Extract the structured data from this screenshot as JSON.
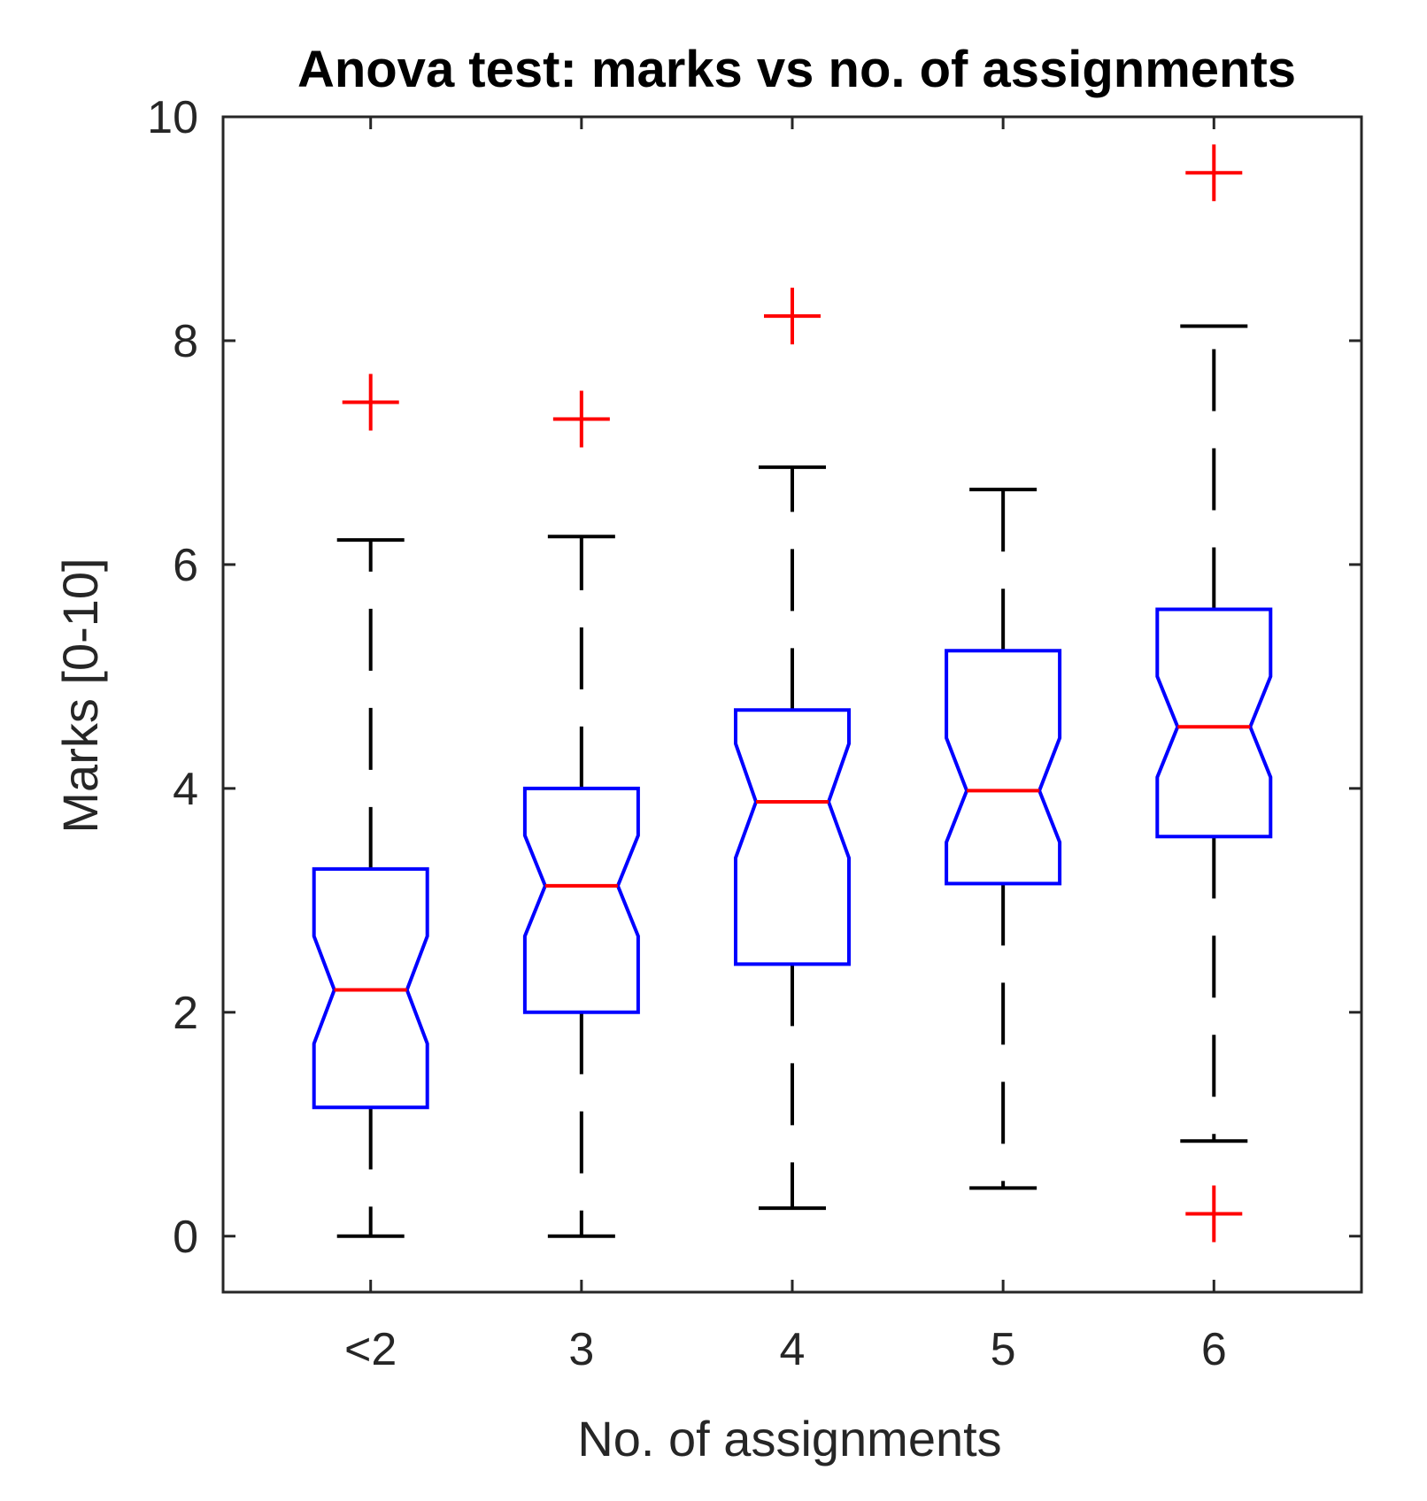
{
  "chart_data": {
    "type": "boxplot",
    "title": "Anova test: marks vs no. of assignments",
    "xlabel": "No. of assignments",
    "ylabel": "Marks [0-10]",
    "categories": [
      "<2",
      "3",
      "4",
      "5",
      "6"
    ],
    "ylim": [
      -0.5,
      10
    ],
    "yticks": [
      0,
      2,
      4,
      6,
      8,
      10
    ],
    "grid": false,
    "notched": true,
    "colors": {
      "box": "#0000ff",
      "median": "#ff0000",
      "whisker": "#000000",
      "outlier": "#ff0000",
      "axes": "#262626"
    },
    "boxes": [
      {
        "category": "<2",
        "whisker_low": 0.0,
        "q1": 1.15,
        "notch_low": 1.72,
        "median": 2.2,
        "notch_high": 2.68,
        "q3": 3.28,
        "whisker_high": 6.22,
        "outliers": [
          7.45
        ]
      },
      {
        "category": "3",
        "whisker_low": 0.0,
        "q1": 2.0,
        "notch_low": 2.68,
        "median": 3.13,
        "notch_high": 3.58,
        "q3": 4.0,
        "whisker_high": 6.25,
        "outliers": [
          7.3
        ]
      },
      {
        "category": "4",
        "whisker_low": 0.25,
        "q1": 2.43,
        "notch_low": 3.38,
        "median": 3.88,
        "notch_high": 4.4,
        "q3": 4.7,
        "whisker_high": 6.87,
        "outliers": [
          8.22
        ]
      },
      {
        "category": "5",
        "whisker_low": 0.43,
        "q1": 3.15,
        "notch_low": 3.52,
        "median": 3.98,
        "notch_high": 4.45,
        "q3": 5.23,
        "whisker_high": 6.67,
        "outliers": []
      },
      {
        "category": "6",
        "whisker_low": 0.85,
        "q1": 3.57,
        "notch_low": 4.1,
        "median": 4.55,
        "notch_high": 5.0,
        "q3": 5.6,
        "whisker_high": 8.13,
        "outliers": [
          9.5,
          0.2
        ]
      }
    ]
  }
}
